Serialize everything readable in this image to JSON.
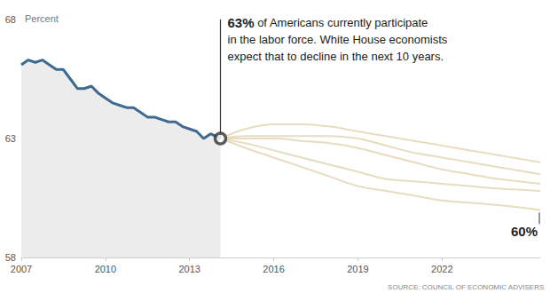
{
  "chart_data": {
    "type": "line",
    "ylabel": "Percent",
    "xlim": [
      2007,
      2025.5
    ],
    "xticks": [
      2007,
      2010,
      2013,
      2016,
      2019,
      2022
    ],
    "ylim": [
      58,
      68
    ],
    "yticks": [
      58,
      63,
      68
    ],
    "grid": false,
    "source": "SOURCE: COUNCIL OF ECONOMIC ADVISERS",
    "series": [
      {
        "type": "area",
        "color": "#3e6a92",
        "x": [
          2007.0,
          2007.25,
          2007.5,
          2007.75,
          2008.0,
          2008.25,
          2008.5,
          2008.75,
          2009.0,
          2009.25,
          2009.5,
          2009.75,
          2010.0,
          2010.25,
          2010.5,
          2010.75,
          2011.0,
          2011.25,
          2011.5,
          2011.75,
          2012.0,
          2012.25,
          2012.5,
          2012.75,
          2013.0,
          2013.25,
          2013.5,
          2013.75,
          2014.1
        ],
        "values": [
          66.1,
          66.3,
          66.2,
          66.3,
          66.1,
          65.9,
          65.9,
          65.5,
          65.1,
          65.1,
          65.2,
          64.9,
          64.7,
          64.5,
          64.4,
          64.3,
          64.3,
          64.1,
          63.9,
          63.9,
          63.8,
          63.7,
          63.7,
          63.5,
          63.4,
          63.3,
          63.0,
          63.2,
          63.0
        ]
      },
      {
        "type": "line",
        "color": "#e8dcc0",
        "x": [
          2014.1,
          2015,
          2016,
          2017,
          2018,
          2019,
          2020,
          2021,
          2022,
          2023,
          2024,
          2025.5
        ],
        "values": [
          63.0,
          63.4,
          63.6,
          63.6,
          63.5,
          63.3,
          63.1,
          62.9,
          62.7,
          62.5,
          62.3,
          62.0
        ]
      },
      {
        "type": "line",
        "color": "#e8dcc0",
        "x": [
          2014.1,
          2015,
          2016,
          2017,
          2018,
          2019,
          2020,
          2021,
          2022,
          2023,
          2024,
          2025.5
        ],
        "values": [
          63.0,
          63.1,
          63.1,
          63.1,
          63.1,
          63.0,
          62.7,
          62.4,
          62.2,
          62.0,
          61.8,
          61.5
        ]
      },
      {
        "type": "line",
        "color": "#e8dcc0",
        "x": [
          2014.1,
          2015,
          2016,
          2017,
          2018,
          2019,
          2020,
          2021,
          2022,
          2023,
          2024,
          2025.5
        ],
        "values": [
          63.0,
          63.0,
          63.0,
          62.9,
          62.8,
          62.6,
          62.3,
          62.0,
          61.7,
          61.5,
          61.3,
          61.1
        ]
      },
      {
        "type": "line",
        "color": "#e8dcc0",
        "x": [
          2014.1,
          2015,
          2016,
          2017,
          2018,
          2019,
          2020,
          2021,
          2022,
          2023,
          2024,
          2025.5
        ],
        "values": [
          63.0,
          62.8,
          62.5,
          62.2,
          61.9,
          61.6,
          61.3,
          61.2,
          61.1,
          61.0,
          60.9,
          60.8
        ]
      },
      {
        "type": "line",
        "color": "#e8dcc0",
        "x": [
          2014.1,
          2015,
          2016,
          2017,
          2018,
          2019,
          2020,
          2021,
          2022,
          2023,
          2024,
          2025.5
        ],
        "values": [
          63.0,
          62.6,
          62.2,
          61.8,
          61.4,
          61.0,
          60.8,
          60.6,
          60.4,
          60.3,
          60.2,
          60.0
        ]
      }
    ],
    "annotations": [
      {
        "x": 2014.1,
        "y": 63,
        "text": "63% of Americans currently participate\nin the labor force. White House economists\nexpect that to decline in the next 10 years."
      },
      {
        "x": 2025.5,
        "y": 60,
        "text": "60%"
      }
    ]
  }
}
